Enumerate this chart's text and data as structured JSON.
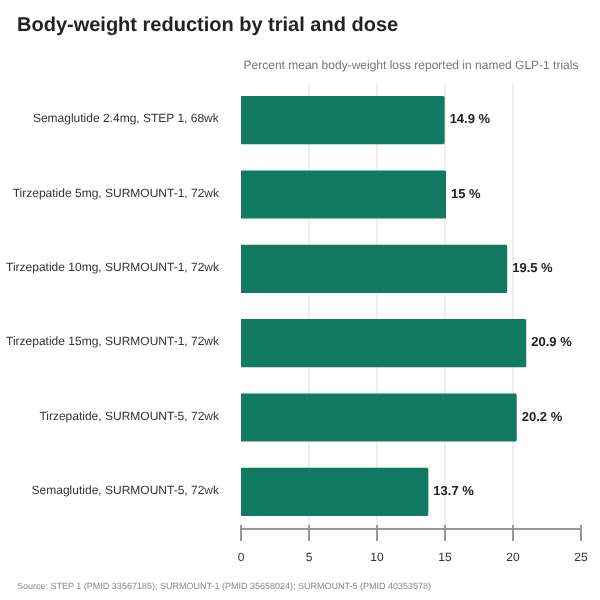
{
  "chart_data": {
    "type": "bar",
    "orientation": "horizontal",
    "title": "Body-weight reduction by trial and dose",
    "subtitle": "Percent mean body-weight loss reported in named GLP-1 trials",
    "categories": [
      "Semaglutide 2.4mg, STEP 1, 68wk",
      "Tirzepatide 5mg, SURMOUNT-1, 72wk",
      "Tirzepatide 10mg, SURMOUNT-1, 72wk",
      "Tirzepatide 15mg, SURMOUNT-1, 72wk",
      "Tirzepatide, SURMOUNT-5, 72wk",
      "Semaglutide, SURMOUNT-5, 72wk"
    ],
    "values": [
      14.9,
      15,
      19.5,
      20.9,
      20.2,
      13.7
    ],
    "value_labels": [
      "14.9 %",
      "15 %",
      "19.5 %",
      "20.9 %",
      "20.2 %",
      "13.7 %"
    ],
    "color": "#127a63",
    "xlim": [
      0,
      25
    ],
    "xticks": [
      0,
      5,
      10,
      15,
      20,
      25
    ],
    "grid": "x",
    "annotations": [
      "Source: STEP 1 (PMID 33567185); SURMOUNT-1 (PMID 35658024); SURMOUNT-5 (PMID 40353578)"
    ]
  }
}
